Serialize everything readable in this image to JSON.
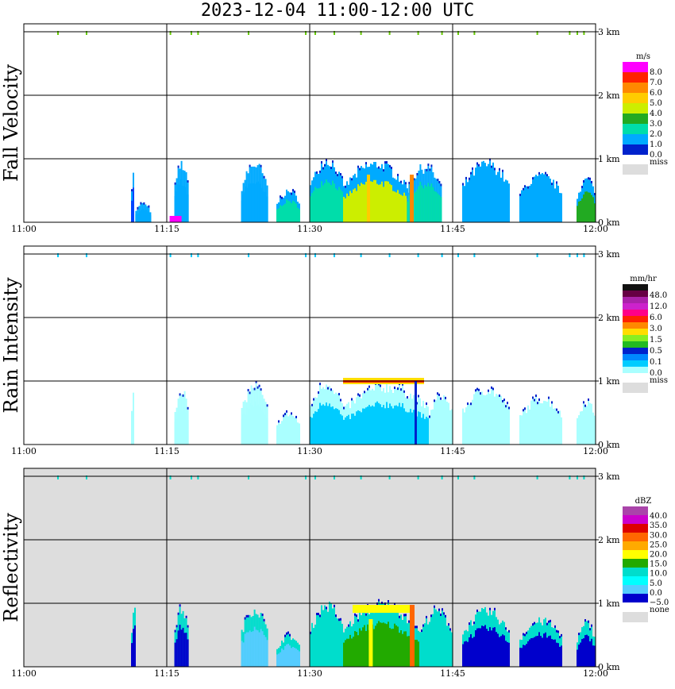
{
  "title": "2023-12-04   11:00-12:00 UTC",
  "chart_data": [
    {
      "type": "heatmap",
      "ylabel": "Fall Velocity",
      "x_ticks": [
        "11:00",
        "11:15",
        "11:30",
        "11:45",
        "12:00"
      ],
      "y_ticks": [
        "0 km",
        "1 km",
        "2 km",
        "3 km"
      ],
      "xlim": [
        "11:00",
        "12:00"
      ],
      "ylim_km": [
        0,
        3
      ],
      "grid": true,
      "background": "#ffffff",
      "colorbar": {
        "unit": "m/s",
        "labels": [
          "8.0",
          "7.0",
          "6.0",
          "5.0",
          "4.0",
          "3.0",
          "2.0",
          "1.0",
          "0.0"
        ],
        "colors": [
          "#ff00ff",
          "#ff2200",
          "#ff8800",
          "#ffcc00",
          "#ccee00",
          "#22aa22",
          "#00ddaa",
          "#00aaff",
          "#0022cc"
        ],
        "missing_label": "miss",
        "missing_color": "#dddddd"
      },
      "echoes": [
        {
          "t": [
            11.25,
            11.48
          ],
          "top_km": 0.95,
          "core": "#0044ff"
        },
        {
          "t": [
            11.7,
            13.2
          ],
          "top_km": 0.3,
          "core": "#00aaff"
        },
        {
          "t": [
            15.8,
            17.2
          ],
          "top_km": 0.95,
          "core": "#00aaff"
        },
        {
          "t": [
            22.8,
            25.5
          ],
          "top_km": 0.95,
          "core": "#00aaff"
        },
        {
          "t": [
            26.5,
            29.0
          ],
          "top_km": 0.5,
          "core": "#00ddaa"
        },
        {
          "t": [
            30.0,
            33.5
          ],
          "top_km": 1.0,
          "core": "#00ddaa"
        },
        {
          "t": [
            33.5,
            40.2
          ],
          "top_km": 0.95,
          "core": "#ccee00"
        },
        {
          "t": [
            40.2,
            43.8
          ],
          "top_km": 0.9,
          "core": "#00ddaa"
        },
        {
          "t": [
            46.0,
            51.0
          ],
          "top_km": 0.95,
          "core": "#00aaff"
        },
        {
          "t": [
            52.0,
            56.5
          ],
          "top_km": 0.75,
          "core": "#00aaff"
        },
        {
          "t": [
            58.0,
            60.0
          ],
          "top_km": 0.7,
          "core": "#22aa22"
        }
      ]
    },
    {
      "type": "heatmap",
      "ylabel": "Rain Intensity",
      "x_ticks": [
        "11:00",
        "11:15",
        "11:30",
        "11:45",
        "12:00"
      ],
      "y_ticks": [
        "0 km",
        "1 km",
        "2 km",
        "3 km"
      ],
      "xlim": [
        "11:00",
        "12:00"
      ],
      "ylim_km": [
        0,
        3
      ],
      "grid": true,
      "background": "#ffffff",
      "colorbar": {
        "unit": "mm/hr",
        "labels": [
          "48.0",
          "12.0",
          "6.0",
          "3.0",
          "1.5",
          "0.5",
          "0.1",
          "0.0"
        ],
        "colors": [
          "#111111",
          "#660044",
          "#aa22aa",
          "#cc22cc",
          "#ff0088",
          "#ff2200",
          "#ff8800",
          "#ffdd00",
          "#88ee22",
          "#22bb22",
          "#0022cc",
          "#0088ff",
          "#00ccff",
          "#aaffff"
        ],
        "missing_label": "miss",
        "missing_color": "#dddddd"
      },
      "echoes": [
        {
          "t": [
            11.25,
            11.5
          ],
          "top_km": 0.9,
          "core": "#aaffff"
        },
        {
          "t": [
            15.8,
            17.2
          ],
          "top_km": 0.9,
          "core": "#aaffff"
        },
        {
          "t": [
            22.8,
            25.5
          ],
          "top_km": 0.95,
          "core": "#aaffff"
        },
        {
          "t": [
            26.5,
            29.0
          ],
          "top_km": 0.5,
          "core": "#aaffff"
        },
        {
          "t": [
            30.0,
            33.5
          ],
          "top_km": 1.0,
          "core": "#00ccff"
        },
        {
          "t": [
            33.5,
            42.5
          ],
          "top_km": 0.95,
          "core": "#00ccff"
        },
        {
          "t": [
            42.5,
            45.0
          ],
          "top_km": 0.8,
          "core": "#aaffff"
        },
        {
          "t": [
            46.0,
            51.0
          ],
          "top_km": 0.9,
          "core": "#aaffff"
        },
        {
          "t": [
            52.0,
            56.5
          ],
          "top_km": 0.75,
          "core": "#aaffff"
        },
        {
          "t": [
            58.0,
            60.0
          ],
          "top_km": 0.7,
          "core": "#aaffff"
        }
      ]
    },
    {
      "type": "heatmap",
      "ylabel": "Reflectivity",
      "x_ticks": [
        "11:00",
        "11:15",
        "11:30",
        "11:45",
        "12:00"
      ],
      "y_ticks": [
        "0 km",
        "1 km",
        "2 km",
        "3 km"
      ],
      "xlim": [
        "11:00",
        "12:00"
      ],
      "ylim_km": [
        0,
        3
      ],
      "grid": true,
      "background": "#dddddd",
      "colorbar": {
        "unit": "dBZ",
        "labels": [
          "40.0",
          "35.0",
          "30.0",
          "25.0",
          "20.0",
          "15.0",
          "10.0",
          "5.0",
          "0.0",
          "−5.0"
        ],
        "colors": [
          "#aa44aa",
          "#cc00cc",
          "#dd0000",
          "#ff6600",
          "#ffaa00",
          "#ffff00",
          "#22aa00",
          "#00ddcc",
          "#00ffff",
          "#55ccff",
          "#0000cc"
        ],
        "missing_label": "none",
        "missing_color": "#dddddd"
      },
      "echoes": [
        {
          "t": [
            11.25,
            11.7
          ],
          "top_km": 1.0,
          "core": "#0000cc"
        },
        {
          "t": [
            15.8,
            17.2
          ],
          "top_km": 0.95,
          "core": "#0000cc"
        },
        {
          "t": [
            22.8,
            25.5
          ],
          "top_km": 0.95,
          "core": "#55ccff"
        },
        {
          "t": [
            26.5,
            29.0
          ],
          "top_km": 0.5,
          "core": "#55ccff"
        },
        {
          "t": [
            30.0,
            33.5
          ],
          "top_km": 1.0,
          "core": "#00ddcc"
        },
        {
          "t": [
            33.5,
            41.5
          ],
          "top_km": 1.0,
          "core": "#22aa00"
        },
        {
          "t": [
            41.5,
            45.0
          ],
          "top_km": 0.9,
          "core": "#00ddcc"
        },
        {
          "t": [
            46.0,
            51.0
          ],
          "top_km": 0.9,
          "core": "#0000cc"
        },
        {
          "t": [
            52.0,
            56.5
          ],
          "top_km": 0.75,
          "core": "#0000cc"
        },
        {
          "t": [
            58.0,
            60.0
          ],
          "top_km": 0.7,
          "core": "#0000cc"
        }
      ]
    }
  ]
}
